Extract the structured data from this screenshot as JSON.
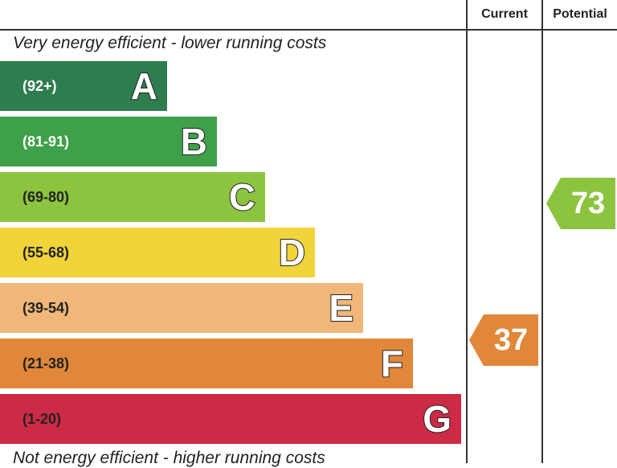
{
  "header": {
    "current_label": "Current",
    "potential_label": "Potential"
  },
  "captions": {
    "top": "Very energy efficient - lower running costs",
    "bottom": "Not energy efficient - higher running costs"
  },
  "bands": [
    {
      "range": "(92+)",
      "letter": "A",
      "color": "#2e7d4f"
    },
    {
      "range": "(81-91)",
      "letter": "B",
      "color": "#3fa04a"
    },
    {
      "range": "(69-80)",
      "letter": "C",
      "color": "#8cc43f"
    },
    {
      "range": "(55-68)",
      "letter": "D",
      "color": "#f0d43a"
    },
    {
      "range": "(39-54)",
      "letter": "E",
      "color": "#f0b778"
    },
    {
      "range": "(21-38)",
      "letter": "F",
      "color": "#e0873a"
    },
    {
      "range": "(1-20)",
      "letter": "G",
      "color": "#cc2a45"
    }
  ],
  "ratings": {
    "current": {
      "value": "37",
      "band": "F",
      "color": "#e0873a"
    },
    "potential": {
      "value": "73",
      "band": "C",
      "color": "#8cc43f"
    }
  }
}
